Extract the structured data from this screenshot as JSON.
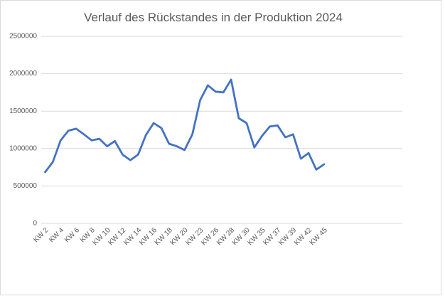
{
  "chart_data": {
    "type": "line",
    "title": "Verlauf des Rückstandes in der Produktion 2024",
    "categories": [
      "KW 2",
      null,
      "KW 4",
      null,
      "KW 6",
      null,
      "KW 8",
      null,
      "KW 10",
      null,
      "KW 12",
      null,
      "KW 14",
      null,
      "KW 16",
      null,
      "KW 18",
      null,
      "KW 20",
      null,
      "KW 23",
      null,
      "KW 26",
      null,
      "KW 28",
      null,
      "KW 30",
      null,
      "KW 35",
      null,
      "KW 37",
      null,
      "KW 39",
      null,
      "KW 42",
      null,
      "KW 45"
    ],
    "values": [
      685000,
      820000,
      1110000,
      1240000,
      1265000,
      1190000,
      1110000,
      1130000,
      1030000,
      1100000,
      920000,
      845000,
      920000,
      1180000,
      1340000,
      1275000,
      1065000,
      1030000,
      980000,
      1190000,
      1645000,
      1845000,
      1760000,
      1750000,
      1920000,
      1405000,
      1340000,
      1015000,
      1170000,
      1295000,
      1310000,
      1150000,
      1190000,
      865000,
      940000,
      720000,
      790000
    ],
    "color": "#4472c4",
    "ylim": [
      0,
      2500000
    ],
    "yticks": [
      0,
      500000,
      1000000,
      1500000,
      2000000,
      2500000
    ],
    "grid": true
  }
}
